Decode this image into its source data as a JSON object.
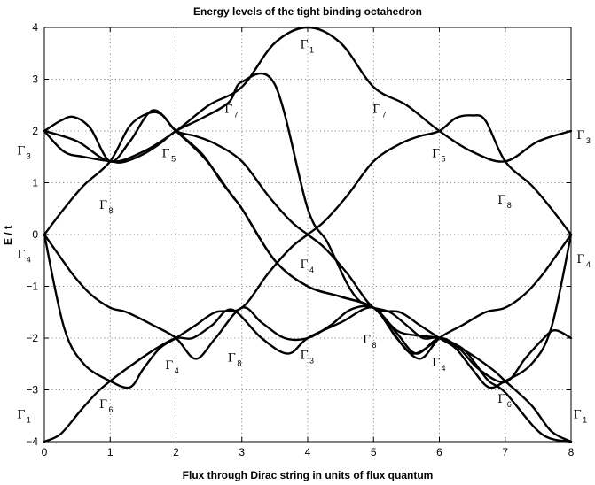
{
  "chart_data": {
    "type": "line",
    "title": "Energy levels of the tight binding octahedron",
    "xlabel": "Flux through Dirac string in units of flux quantum",
    "ylabel": "E / t",
    "xlim": [
      0,
      8
    ],
    "ylim": [
      -4,
      4
    ],
    "xticks": [
      0,
      1,
      2,
      3,
      4,
      5,
      6,
      7,
      8
    ],
    "yticks": [
      -4,
      -3,
      -2,
      -1,
      0,
      1,
      2,
      3,
      4
    ],
    "grid": true,
    "line_color": "#000000",
    "series": [
      {
        "x": [
          0,
          0.5,
          1,
          1.5,
          2,
          2.5,
          3,
          3.5,
          4,
          4.5,
          5,
          5.5,
          6,
          6.5,
          7,
          7.5,
          8
        ],
        "values": [
          2.0,
          1.8,
          1.414,
          1.6,
          2.0,
          2.5,
          2.85,
          3.7,
          4.0,
          3.7,
          2.85,
          2.5,
          2.0,
          1.6,
          1.414,
          1.8,
          2.0
        ]
      },
      {
        "x": [
          0,
          0.25,
          0.45,
          0.7,
          1,
          1.3,
          1.65,
          2,
          2.45,
          2.85,
          3,
          3.5,
          4,
          4.5,
          5,
          5.3,
          5.6,
          6
        ],
        "values": [
          2.0,
          2.2,
          2.27,
          2.05,
          1.414,
          1.8,
          2.4,
          2.0,
          1.45,
          0.75,
          0.5,
          -0.5,
          -1.0,
          -1.2,
          -1.414,
          -1.9,
          -2.3,
          -2.0
        ]
      },
      {
        "x": [
          2,
          2.4,
          2.7,
          3,
          3.5,
          4,
          4.5,
          5,
          5.35,
          5.65,
          6,
          6.3,
          6.6,
          7,
          7.3,
          7.55,
          7.75,
          8
        ],
        "values": [
          2.0,
          1.55,
          1.0,
          0.5,
          -0.5,
          -1.0,
          -1.2,
          -1.414,
          -1.9,
          -2.3,
          -2.0,
          -2.2,
          -2.6,
          -2.85,
          -2.4,
          -2.05,
          -1.85,
          -2.0
        ]
      },
      {
        "x": [
          0,
          0.25,
          0.55,
          0.8,
          1,
          1.35,
          1.7,
          2,
          2.25,
          2.55,
          2.85,
          3.3,
          3.7,
          4,
          4.5,
          5,
          5.35,
          5.7,
          6,
          6.35,
          6.7,
          7,
          7.3,
          7.55,
          7.75,
          8
        ],
        "values": [
          -4.0,
          -3.85,
          -3.4,
          -3.05,
          -2.83,
          -2.5,
          -2.2,
          -2.0,
          -2.0,
          -1.75,
          -1.45,
          -2.0,
          -2.3,
          -2.0,
          -1.7,
          -1.414,
          -2.0,
          -2.4,
          -2.0,
          -1.75,
          -1.5,
          -1.414,
          -1.15,
          -0.8,
          -0.45,
          0.0
        ]
      },
      {
        "x": [
          0,
          0.25,
          0.45,
          0.7,
          1,
          1.25,
          1.65,
          2,
          2.3,
          2.6,
          3,
          3.3,
          3.65,
          4,
          4.35,
          4.65,
          5,
          5.35,
          5.65,
          6,
          6.35,
          6.55,
          6.75,
          7,
          7.55,
          8
        ],
        "values": [
          0.0,
          -0.45,
          -0.8,
          -1.15,
          -1.414,
          -1.5,
          -1.75,
          -2.0,
          -2.4,
          -2.0,
          -1.414,
          -1.7,
          -2.0,
          -2.0,
          -1.75,
          -1.45,
          -1.414,
          -1.85,
          -1.95,
          -2.0,
          -2.2,
          -2.5,
          -2.83,
          -3.05,
          -3.85,
          -4.0
        ]
      },
      {
        "x": [
          0,
          0.3,
          0.6,
          1,
          1.3,
          1.5,
          1.75,
          2,
          2.3,
          2.6,
          3,
          3.4,
          3.75,
          4,
          4.25,
          4.6,
          5,
          5.4,
          5.7,
          6,
          6.25,
          6.5,
          6.7,
          7,
          7.4,
          7.7,
          8
        ],
        "values": [
          0.0,
          -1.8,
          -2.5,
          -2.83,
          -2.95,
          -2.6,
          -2.2,
          -2.0,
          -1.75,
          -1.5,
          -1.414,
          -0.75,
          -0.25,
          0.0,
          0.25,
          0.75,
          1.414,
          1.75,
          1.9,
          2.0,
          2.25,
          2.3,
          2.2,
          1.414,
          0.95,
          0.5,
          0.0
        ]
      },
      {
        "x": [
          0,
          0.3,
          0.6,
          1,
          1.3,
          1.6,
          1.8,
          2,
          2.3,
          2.6,
          3,
          3.4,
          3.75,
          4,
          4.25,
          4.6,
          5,
          5.4,
          5.7,
          6,
          6.25,
          6.5,
          6.75,
          7,
          7.4,
          7.7,
          8
        ],
        "values": [
          0.0,
          0.5,
          0.95,
          1.414,
          2.1,
          2.35,
          2.3,
          2.0,
          1.9,
          1.75,
          1.414,
          0.75,
          0.25,
          0.0,
          -0.25,
          -0.75,
          -1.414,
          -1.5,
          -1.75,
          -2.0,
          -2.2,
          -2.6,
          -2.95,
          -2.83,
          -2.5,
          -1.8,
          0.0
        ]
      },
      {
        "x": [
          0,
          0.3,
          0.6,
          1,
          1.2,
          1.5,
          1.75,
          2,
          2.4,
          2.8,
          3,
          3.5,
          4,
          4.3,
          4.6,
          4.8,
          5,
          5.25,
          5.5,
          5.75,
          6,
          6.4,
          6.8,
          7,
          7.4,
          7.7,
          8
        ],
        "values": [
          2.0,
          1.6,
          1.5,
          1.414,
          1.4,
          1.55,
          1.75,
          2.0,
          2.25,
          2.55,
          2.95,
          2.9,
          0.5,
          -0.15,
          -0.95,
          -1.3,
          -1.414,
          -1.5,
          -1.75,
          -2.0,
          -2.0,
          -2.25,
          -2.6,
          -2.83,
          -3.3,
          -3.8,
          -4.0
        ]
      }
    ],
    "annotations": [
      {
        "sym": "Γ",
        "sub": "1",
        "x": 4.0,
        "y": 3.6
      },
      {
        "sym": "Γ",
        "sub": "7",
        "x": 2.85,
        "y": 2.35
      },
      {
        "sym": "Γ",
        "sub": "7",
        "x": 5.1,
        "y": 2.35
      },
      {
        "sym": "Γ",
        "sub": "3",
        "x": -0.3,
        "y": 1.55
      },
      {
        "sym": "Γ",
        "sub": "3",
        "x": 8.2,
        "y": 1.85
      },
      {
        "sym": "Γ",
        "sub": "5",
        "x": 1.9,
        "y": 1.5
      },
      {
        "sym": "Γ",
        "sub": "5",
        "x": 6.0,
        "y": 1.5
      },
      {
        "sym": "Γ",
        "sub": "8",
        "x": 0.95,
        "y": 0.5
      },
      {
        "sym": "Γ",
        "sub": "8",
        "x": 7.0,
        "y": 0.6
      },
      {
        "sym": "Γ",
        "sub": "4",
        "x": -0.3,
        "y": -0.45
      },
      {
        "sym": "Γ",
        "sub": "4",
        "x": 8.2,
        "y": -0.55
      },
      {
        "sym": "Γ",
        "sub": "4",
        "x": 4.0,
        "y": -0.65
      },
      {
        "sym": "Γ",
        "sub": "3",
        "x": 4.0,
        "y": -2.4
      },
      {
        "sym": "Γ",
        "sub": "8",
        "x": 2.9,
        "y": -2.45
      },
      {
        "sym": "Γ",
        "sub": "8",
        "x": 4.95,
        "y": -2.1
      },
      {
        "sym": "Γ",
        "sub": "4",
        "x": 1.95,
        "y": -2.6
      },
      {
        "sym": "Γ",
        "sub": "4",
        "x": 6.0,
        "y": -2.55
      },
      {
        "sym": "Γ",
        "sub": "6",
        "x": 0.95,
        "y": -3.35
      },
      {
        "sym": "Γ",
        "sub": "6",
        "x": 7.0,
        "y": -3.25
      },
      {
        "sym": "Γ",
        "sub": "1",
        "x": -0.3,
        "y": -3.55
      },
      {
        "sym": "Γ",
        "sub": "1",
        "x": 8.15,
        "y": -3.55
      }
    ]
  }
}
